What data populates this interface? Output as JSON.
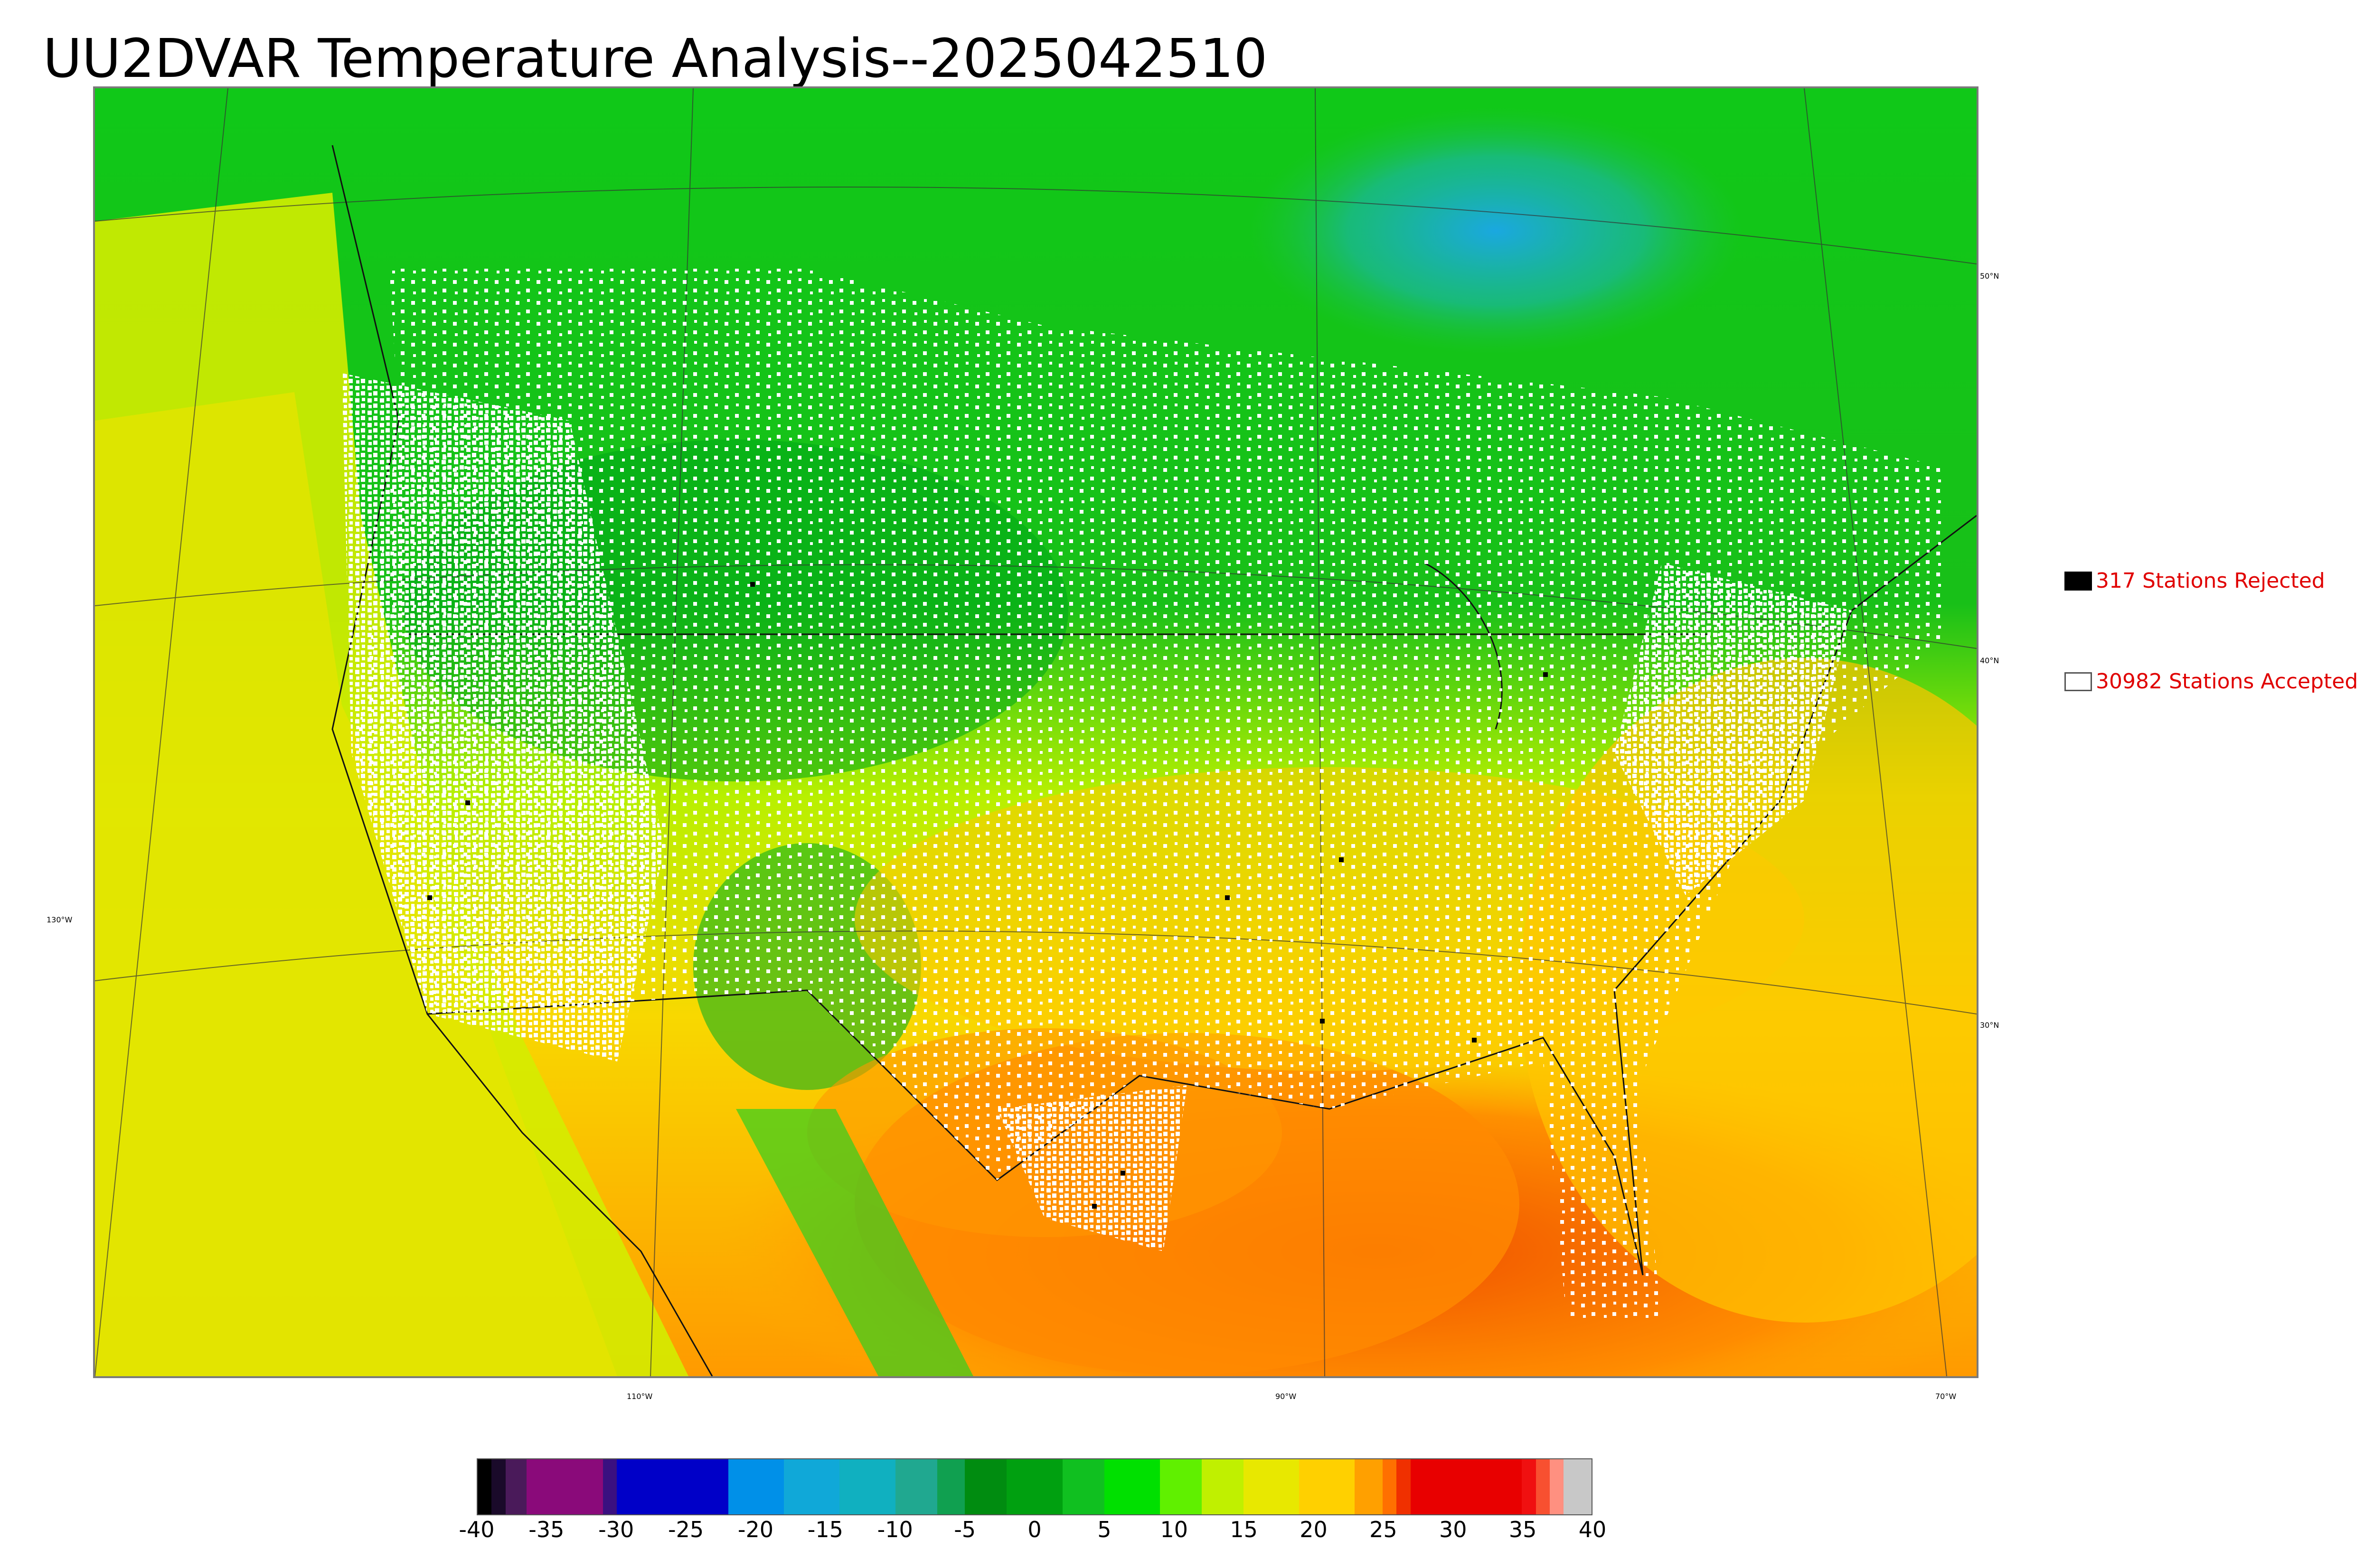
{
  "title": "UU2DVAR Temperature Analysis--2025042510",
  "legend": {
    "rejected": {
      "label": "317 Stations Rejected",
      "swatch_color": "#000000",
      "text_color": "#e00000"
    },
    "accepted": {
      "label": "30982 Stations Accepted",
      "swatch_color": "#ffffff",
      "text_color": "#e00000"
    }
  },
  "graticule": {
    "latitudes": [
      "50°N",
      "40°N",
      "30°N"
    ],
    "longitudes": [
      "130°W",
      "110°W",
      "90°W",
      "70°W"
    ]
  },
  "colorbar": {
    "ticks": [
      "-40",
      "-35",
      "-30",
      "-25",
      "-20",
      "-15",
      "-10",
      "-5",
      "0",
      "5",
      "10",
      "15",
      "20",
      "25",
      "30",
      "35",
      "40"
    ],
    "range": [
      -40,
      40
    ],
    "units_visible": false,
    "segments": [
      {
        "from": -40,
        "to": -39,
        "color": "#000000"
      },
      {
        "from": -39,
        "to": -38,
        "color": "#1a0a2a"
      },
      {
        "from": -38,
        "to": -36.5,
        "color": "#4a1a5a"
      },
      {
        "from": -36.5,
        "to": -31,
        "color": "#8a0a7a"
      },
      {
        "from": -31,
        "to": -30,
        "color": "#3a1080"
      },
      {
        "from": -30,
        "to": -22,
        "color": "#0000c8"
      },
      {
        "from": -22,
        "to": -18,
        "color": "#0090e8"
      },
      {
        "from": -18,
        "to": -14,
        "color": "#10a8d8"
      },
      {
        "from": -14,
        "to": -10,
        "color": "#10b0c0"
      },
      {
        "from": -10,
        "to": -7,
        "color": "#20a890"
      },
      {
        "from": -7,
        "to": -5,
        "color": "#10a050"
      },
      {
        "from": -5,
        "to": -2,
        "color": "#008c10"
      },
      {
        "from": -2,
        "to": 2,
        "color": "#00a010"
      },
      {
        "from": 2,
        "to": 5,
        "color": "#10c020"
      },
      {
        "from": 5,
        "to": 9,
        "color": "#00e000"
      },
      {
        "from": 9,
        "to": 12,
        "color": "#60f000"
      },
      {
        "from": 12,
        "to": 15,
        "color": "#c0f000"
      },
      {
        "from": 15,
        "to": 19,
        "color": "#e8e800"
      },
      {
        "from": 19,
        "to": 23,
        "color": "#ffd000"
      },
      {
        "from": 23,
        "to": 25,
        "color": "#ffa000"
      },
      {
        "from": 25,
        "to": 26,
        "color": "#ff7000"
      },
      {
        "from": 26,
        "to": 27,
        "color": "#f03000"
      },
      {
        "from": 27,
        "to": 35,
        "color": "#e80000"
      },
      {
        "from": 35,
        "to": 36,
        "color": "#f01010"
      },
      {
        "from": 36,
        "to": 37,
        "color": "#f85030"
      },
      {
        "from": 37,
        "to": 38,
        "color": "#ff9080"
      },
      {
        "from": 38,
        "to": 40,
        "color": "#c8c8c8"
      }
    ]
  }
}
